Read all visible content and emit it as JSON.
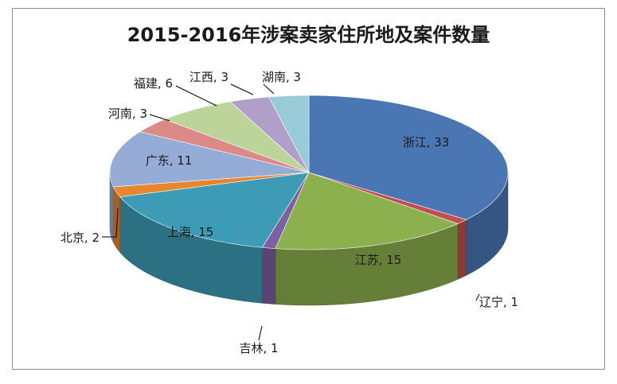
{
  "chart_data": {
    "type": "pie",
    "style": "3d",
    "title": "2015-2016年涉案卖家住所地及案件数量",
    "legend": "none",
    "slices": [
      {
        "name": "浙江",
        "value": 33,
        "label": "浙江, 33",
        "color": "#4a77b4"
      },
      {
        "name": "辽宁",
        "value": 1,
        "label": "辽宁, 1",
        "color": "#c0504d"
      },
      {
        "name": "江苏",
        "value": 15,
        "label": "江苏, 15",
        "color": "#8db04e"
      },
      {
        "name": "吉林",
        "value": 1,
        "label": "吉林, 1",
        "color": "#7d5fa3"
      },
      {
        "name": "上海",
        "value": 15,
        "label": "上海, 15",
        "color": "#3c9cb6"
      },
      {
        "name": "北京",
        "value": 2,
        "label": "北京, 2",
        "color": "#e6862e"
      },
      {
        "name": "广东",
        "value": 11,
        "label": "广东, 11",
        "color": "#95acd6"
      },
      {
        "name": "河南",
        "value": 3,
        "label": "河南, 3",
        "color": "#dc8a88"
      },
      {
        "name": "福建",
        "value": 6,
        "label": "福建, 6",
        "color": "#bcd49a"
      },
      {
        "name": "江西",
        "value": 3,
        "label": "江西, 3",
        "color": "#b09fc8"
      },
      {
        "name": "湖南",
        "value": 3,
        "label": "湖南, 3",
        "color": "#99cad7"
      }
    ]
  }
}
